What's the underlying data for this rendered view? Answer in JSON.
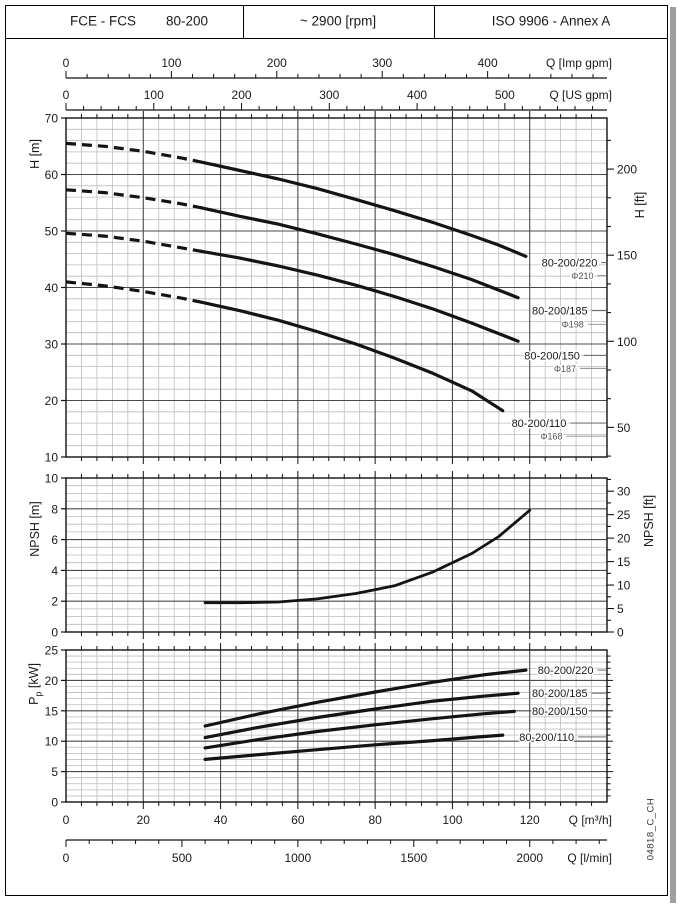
{
  "header": {
    "series": "FCE - FCS",
    "size": "80-200",
    "speed": "~ 2900 [rpm]",
    "standard": "ISO 9906 - Annex A"
  },
  "watermark": "04818_C_CH",
  "colors": {
    "curve": "#141414",
    "grid_major": "#4a4a4a",
    "grid_minor": "#bcbcbc",
    "border": "#111111",
    "text": "#1a1a1a"
  },
  "axes": {
    "flow_m3h": {
      "label": "Q [m³/h]",
      "labeled_ticks": [
        0,
        20,
        40,
        60,
        80,
        100,
        120
      ],
      "minor_step": 4,
      "max": 140
    },
    "flow_lmin": {
      "label": "Q [l/min]",
      "labeled_ticks": [
        0,
        500,
        1000,
        1500,
        2000
      ],
      "minor_step": 100,
      "units_per_m3h": 16.6667
    },
    "flow_usgpm": {
      "label": "Q [US gpm]",
      "labeled_ticks": [
        0,
        100,
        200,
        300,
        400,
        500
      ],
      "minor_step": 20,
      "units_per_m3h": 4.4029
    },
    "flow_impgpm": {
      "label": "Q [Imp gpm]",
      "labeled_ticks": [
        0,
        100,
        200,
        300,
        400
      ],
      "minor_step": 20,
      "units_per_m3h": 3.6662
    }
  },
  "chart_data": [
    {
      "id": "head_flow",
      "type": "line",
      "x_axis_ref": "flow_m3h",
      "y_axis": {
        "label": "H [m]",
        "min": 10,
        "max": 70,
        "major_step": 10,
        "minor_step": 2
      },
      "y2_axis": {
        "label": "H [ft]",
        "labeled_ticks": [
          50,
          100,
          150,
          200
        ],
        "minor_div": 3,
        "ft_per_m": 3.2808
      },
      "note": "dashed segment = low-flow region below ~35 m3/h",
      "series": [
        {
          "name": "80-200/220",
          "impeller": "Φ210",
          "dash_until": 35,
          "points": [
            [
              0,
              65.5
            ],
            [
              10,
              65.0
            ],
            [
              20,
              64.1
            ],
            [
              30,
              62.9
            ],
            [
              35,
              62.2
            ],
            [
              45,
              60.7
            ],
            [
              55,
              59.2
            ],
            [
              65,
              57.5
            ],
            [
              75,
              55.6
            ],
            [
              85,
              53.6
            ],
            [
              95,
              51.5
            ],
            [
              105,
              49.2
            ],
            [
              112,
              47.5
            ],
            [
              119,
              45.5
            ]
          ]
        },
        {
          "name": "80-200/185",
          "impeller": "Φ198",
          "dash_until": 35,
          "points": [
            [
              0,
              57.3
            ],
            [
              10,
              56.8
            ],
            [
              20,
              55.9
            ],
            [
              30,
              54.8
            ],
            [
              35,
              54.1
            ],
            [
              45,
              52.6
            ],
            [
              55,
              51.2
            ],
            [
              65,
              49.5
            ],
            [
              75,
              47.7
            ],
            [
              85,
              45.8
            ],
            [
              95,
              43.7
            ],
            [
              105,
              41.4
            ],
            [
              117,
              38.2
            ]
          ]
        },
        {
          "name": "80-200/150",
          "impeller": "Φ187",
          "dash_until": 35,
          "points": [
            [
              0,
              49.6
            ],
            [
              10,
              49.1
            ],
            [
              20,
              48.2
            ],
            [
              30,
              47.0
            ],
            [
              35,
              46.4
            ],
            [
              45,
              45.2
            ],
            [
              55,
              43.8
            ],
            [
              65,
              42.2
            ],
            [
              75,
              40.4
            ],
            [
              85,
              38.4
            ],
            [
              95,
              36.2
            ],
            [
              105,
              33.7
            ],
            [
              117,
              30.5
            ]
          ]
        },
        {
          "name": "80-200/110",
          "impeller": "Φ168",
          "dash_until": 35,
          "points": [
            [
              0,
              41.0
            ],
            [
              10,
              40.3
            ],
            [
              20,
              39.3
            ],
            [
              30,
              38.1
            ],
            [
              35,
              37.4
            ],
            [
              45,
              35.9
            ],
            [
              55,
              34.2
            ],
            [
              65,
              32.2
            ],
            [
              75,
              30.0
            ],
            [
              85,
              27.5
            ],
            [
              95,
              24.8
            ],
            [
              105,
              21.7
            ],
            [
              113,
              18.2
            ]
          ]
        }
      ],
      "labels": [
        {
          "text": "80-200/220",
          "phi": "Φ210",
          "anchor_q": 137.5,
          "y": 44.4,
          "phi_y": 42.1
        },
        {
          "text": "80-200/185",
          "phi": "Φ198",
          "anchor_q": 135.0,
          "y": 35.9,
          "phi_y": 33.5
        },
        {
          "text": "80-200/150",
          "phi": "Φ187",
          "anchor_q": 133.0,
          "y": 28.0,
          "phi_y": 25.7
        },
        {
          "text": "80-200/110",
          "phi": "Φ168",
          "anchor_q": 129.5,
          "y": 16.0,
          "phi_y": 13.7
        }
      ]
    },
    {
      "id": "npsh",
      "type": "line",
      "x_axis_ref": "flow_m3h",
      "y_axis": {
        "label": "NPSH [m]",
        "min": 0,
        "max": 10,
        "major_step": 2,
        "minor_step": 0.5
      },
      "y2_axis": {
        "label": "NPSH [ft]",
        "labeled_ticks": [
          0,
          5,
          10,
          15,
          20,
          25,
          30
        ],
        "minor_div": 2,
        "ft_per_m": 3.2808
      },
      "series": [
        {
          "name": "NPSH",
          "points": [
            [
              36,
              1.9
            ],
            [
              45,
              1.9
            ],
            [
              55,
              1.95
            ],
            [
              65,
              2.15
            ],
            [
              75,
              2.5
            ],
            [
              85,
              3.0
            ],
            [
              95,
              3.9
            ],
            [
              105,
              5.1
            ],
            [
              112,
              6.2
            ],
            [
              120,
              7.9
            ]
          ]
        }
      ],
      "labels": []
    },
    {
      "id": "power",
      "type": "line",
      "x_axis_ref": "flow_m3h",
      "y_axis": {
        "label_main": "P",
        "label_sub": "p",
        "label_rest": " [kW]",
        "min": 0,
        "max": 25,
        "major_step": 5,
        "minor_step": 1
      },
      "series": [
        {
          "name": "80-200/220",
          "points": [
            [
              36,
              12.5
            ],
            [
              50,
              14.5
            ],
            [
              65,
              16.4
            ],
            [
              80,
              18.1
            ],
            [
              95,
              19.7
            ],
            [
              108,
              20.9
            ],
            [
              119,
              21.7
            ]
          ]
        },
        {
          "name": "80-200/185",
          "points": [
            [
              36,
              10.6
            ],
            [
              50,
              12.3
            ],
            [
              65,
              13.9
            ],
            [
              80,
              15.3
            ],
            [
              95,
              16.6
            ],
            [
              108,
              17.4
            ],
            [
              117,
              17.9
            ]
          ]
        },
        {
          "name": "80-200/150",
          "points": [
            [
              36,
              8.9
            ],
            [
              50,
              10.3
            ],
            [
              65,
              11.6
            ],
            [
              80,
              12.7
            ],
            [
              95,
              13.7
            ],
            [
              108,
              14.5
            ],
            [
              116,
              14.9
            ]
          ]
        },
        {
          "name": "80-200/110",
          "points": [
            [
              36,
              7.0
            ],
            [
              50,
              7.8
            ],
            [
              65,
              8.6
            ],
            [
              80,
              9.4
            ],
            [
              95,
              10.1
            ],
            [
              107,
              10.7
            ],
            [
              113,
              11.0
            ]
          ]
        }
      ],
      "labels": [
        {
          "text": "80-200/220",
          "anchor_q": 136.5,
          "y": 21.7
        },
        {
          "text": "80-200/185",
          "anchor_q": 135.0,
          "y": 17.9
        },
        {
          "text": "80-200/150",
          "anchor_q": 135.0,
          "y": 15.0
        },
        {
          "text": "80-200/110",
          "anchor_q": 131.5,
          "y": 10.7
        }
      ]
    }
  ]
}
